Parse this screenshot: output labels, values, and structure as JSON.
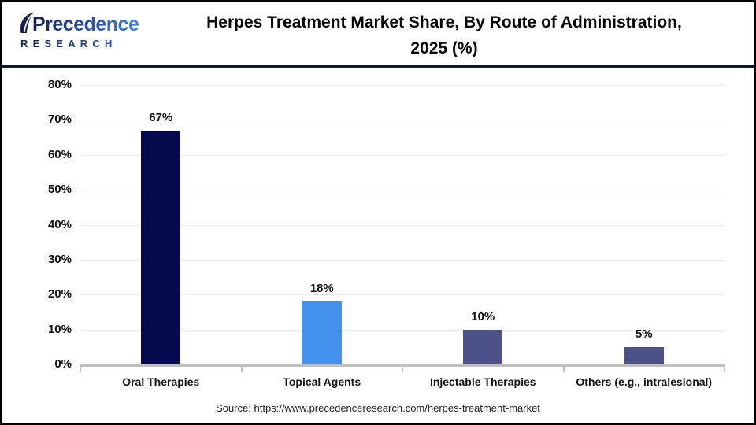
{
  "header": {
    "logo": {
      "brand_line1": "Precedence",
      "brand_line2": "RESEARCH"
    },
    "title_line1": "Herpes Treatment Market Share, By Route of Administration,",
    "title_line2": "2025 (%)"
  },
  "chart_data": {
    "type": "bar",
    "title": "Herpes Treatment Market Share, By Route of Administration, 2025 (%)",
    "categories": [
      "Oral Therapies",
      "Topical Agents",
      "Injectable Therapies",
      "Others (e.g., intralesional)"
    ],
    "values": [
      67,
      18,
      10,
      5
    ],
    "value_labels": [
      "67%",
      "18%",
      "10%",
      "5%"
    ],
    "bar_colors": [
      "#050a4e",
      "#4291ec",
      "#4c5187",
      "#4c5187"
    ],
    "xlabel": "",
    "ylabel": "",
    "ylim": [
      0,
      80
    ],
    "ytick_step": 10,
    "ytick_labels": [
      "0%",
      "10%",
      "20%",
      "30%",
      "40%",
      "50%",
      "60%",
      "70%",
      "80%"
    ],
    "grid": true,
    "legend": false
  },
  "footer": {
    "source": "Source: https://www.precedenceresearch.com/herpes-treatment-market"
  },
  "colors": {
    "gridline": "#ececec",
    "axis": "#bfbfbf",
    "header_separator": "#10173a",
    "logo_dark": "#182354",
    "logo_blue": "#3e82dc",
    "leaf_fill": "#152148"
  }
}
